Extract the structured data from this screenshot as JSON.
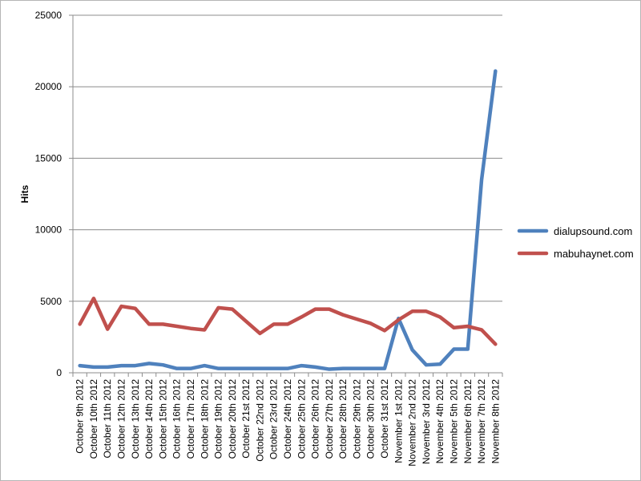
{
  "chart_data": {
    "type": "line",
    "title": "",
    "xlabel": "",
    "ylabel": "Hits",
    "ylim": [
      0,
      25000
    ],
    "yticks": [
      0,
      5000,
      10000,
      15000,
      20000,
      25000
    ],
    "grid": "horizontal",
    "legend_position": "right",
    "categories": [
      "October 9th 2012",
      "October 10th 2012",
      "October 11th 2012",
      "October 12th 2012",
      "October 13th 2012",
      "October 14th 2012",
      "October 15th 2012",
      "October 16th 2012",
      "October 17th 2012",
      "October 18th 2012",
      "October 19th 2012",
      "October 20th 2012",
      "October 21st 2012",
      "October 22nd 2012",
      "October 23rd 2012",
      "October 24th 2012",
      "October 25th 2012",
      "October 26th 2012",
      "October 27th 2012",
      "October 28th 2012",
      "October 29th 2012",
      "October 30th 2012",
      "October 31st 2012",
      "November 1st 2012",
      "November 2nd 2012",
      "November 3rd 2012",
      "November 4th 2012",
      "November 5th 2012",
      "November 6th 2012",
      "November 7th 2012",
      "November 8th 2012"
    ],
    "series": [
      {
        "name": "dialupsound.com",
        "color": "#4f81bd",
        "values": [
          500,
          400,
          400,
          500,
          500,
          650,
          550,
          300,
          300,
          500,
          300,
          300,
          300,
          300,
          300,
          300,
          500,
          400,
          250,
          300,
          300,
          300,
          300,
          3800,
          1600,
          550,
          600,
          1650,
          1650,
          13500,
          21100
        ]
      },
      {
        "name": "mabuhaynet.com",
        "color": "#c0504d",
        "values": [
          3400,
          5200,
          3050,
          4650,
          4500,
          3400,
          3400,
          3250,
          3100,
          3000,
          4550,
          4450,
          3600,
          2750,
          3400,
          3400,
          3900,
          4450,
          4450,
          4050,
          3750,
          3450,
          2950,
          3700,
          4300,
          4300,
          3900,
          3150,
          3250,
          3000,
          2000
        ]
      }
    ]
  }
}
